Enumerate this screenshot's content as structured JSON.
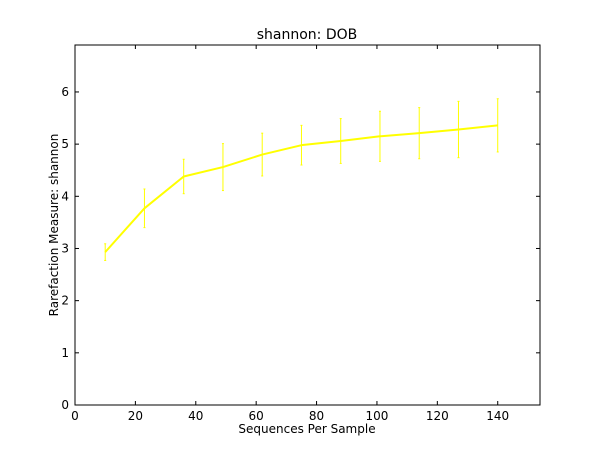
{
  "chart_data": {
    "type": "line",
    "title": "shannon: DOB",
    "xlabel": "Sequences Per Sample",
    "ylabel": "Rarefaction Measure: shannon",
    "xlim": [
      0,
      154
    ],
    "ylim": [
      0,
      6.9
    ],
    "xticks": [
      0,
      20,
      40,
      60,
      80,
      100,
      120,
      140
    ],
    "yticks": [
      0,
      1,
      2,
      3,
      4,
      5,
      6
    ],
    "grid": false,
    "series": [
      {
        "color": "#ffff00",
        "x": [
          10,
          23,
          36,
          49,
          62,
          75,
          88,
          101,
          114,
          127,
          140
        ],
        "y": [
          2.93,
          3.77,
          4.38,
          4.56,
          4.8,
          4.98,
          5.06,
          5.15,
          5.21,
          5.28,
          5.36
        ],
        "err": [
          0.16,
          0.37,
          0.33,
          0.45,
          0.41,
          0.38,
          0.43,
          0.48,
          0.49,
          0.54,
          0.51
        ]
      }
    ]
  }
}
